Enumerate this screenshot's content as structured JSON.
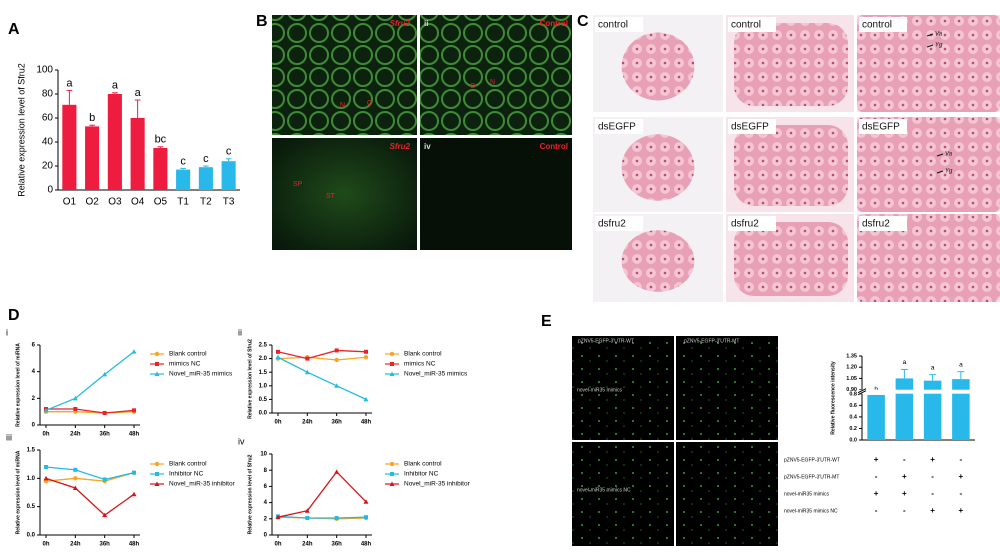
{
  "panel_labels": [
    "A",
    "B",
    "C",
    "D",
    "E"
  ],
  "chart_data": [
    {
      "type": "bar",
      "y_label": "Relative expression level of Sfru2",
      "categories": [
        "O1",
        "O2",
        "O3",
        "O4",
        "O5",
        "T1",
        "T2",
        "T3"
      ],
      "values": [
        71,
        53,
        80,
        60,
        35,
        17,
        19,
        24
      ],
      "errors": [
        12,
        1,
        1,
        15,
        1,
        1,
        1,
        2
      ],
      "letters": [
        "a",
        "b",
        "a",
        "a",
        "bc",
        "c",
        "c",
        "c"
      ],
      "colors": [
        "#ee1d3f",
        "#ee1d3f",
        "#ee1d3f",
        "#ee1d3f",
        "#ee1d3f",
        "#28b8ea",
        "#28b8ea",
        "#28b8ea"
      ],
      "ylim": [
        0,
        100
      ],
      "yticks": [
        0,
        20,
        40,
        60,
        80,
        100
      ]
    },
    {
      "type": "line",
      "label": "i",
      "y_label": "Relative expression level of miRNA",
      "categories": [
        "0h",
        "24h",
        "36h",
        "48h"
      ],
      "ylim": [
        0,
        6
      ],
      "yticks": [
        0,
        2,
        4,
        6
      ],
      "series": [
        {
          "name": "Blank control",
          "color": "#f5a623",
          "marker": "circle",
          "values": [
            1.0,
            1.0,
            0.9,
            1.0
          ]
        },
        {
          "name": "mimics NC",
          "color": "#e8232a",
          "marker": "square",
          "values": [
            1.2,
            1.2,
            0.9,
            1.1
          ]
        },
        {
          "name": "Novel_miR-35 mimics",
          "color": "#21bde0",
          "marker": "triangle",
          "values": [
            1.1,
            2.0,
            3.8,
            5.5
          ]
        }
      ]
    },
    {
      "type": "line",
      "label": "ii",
      "y_label": "Relative expression level of Sfru2",
      "categories": [
        "0h",
        "24h",
        "36h",
        "48h"
      ],
      "ylim": [
        0,
        2.5
      ],
      "yticks": [
        {
          "value": 0,
          "label": "0.0"
        },
        0.5,
        {
          "value": 1,
          "label": "1.0"
        },
        1.5,
        {
          "value": 2,
          "label": "2.0"
        },
        2.5
      ],
      "series": [
        {
          "name": "Blank control",
          "color": "#f5a623",
          "marker": "circle",
          "values": [
            2.0,
            2.05,
            1.95,
            2.05
          ]
        },
        {
          "name": "mimics NC",
          "color": "#e8232a",
          "marker": "square",
          "values": [
            2.25,
            2.0,
            2.3,
            2.25
          ]
        },
        {
          "name": "Novel_miR-35 mimics",
          "color": "#21bde0",
          "marker": "triangle",
          "values": [
            2.05,
            1.5,
            1.0,
            0.5
          ]
        }
      ]
    },
    {
      "type": "line",
      "label": "iii",
      "y_label": "Relative expression level of miRNA",
      "categories": [
        "0h",
        "24h",
        "36h",
        "48h"
      ],
      "ylim": [
        0,
        1.5
      ],
      "yticks": [
        {
          "value": 0,
          "label": "0.0"
        },
        0.5,
        {
          "value": 1,
          "label": "1.0"
        },
        1.5
      ],
      "series": [
        {
          "name": "Blank control",
          "color": "#f5a623",
          "marker": "circle",
          "values": [
            0.95,
            1.0,
            0.95,
            1.1
          ]
        },
        {
          "name": "Inhibitor NC",
          "color": "#21bde0",
          "marker": "square",
          "values": [
            1.2,
            1.15,
            0.98,
            1.1
          ]
        },
        {
          "name": "Novel_miR-35 inhibitor",
          "color": "#d7141a",
          "marker": "triangle",
          "values": [
            1.0,
            0.83,
            0.35,
            0.72
          ]
        }
      ]
    },
    {
      "type": "line",
      "label": "iv",
      "y_label": "Relative expression level of Sfru2",
      "categories": [
        "0h",
        "24h",
        "36h",
        "48h"
      ],
      "ylim": [
        0,
        10
      ],
      "yticks": [
        0,
        2,
        4,
        6,
        8,
        10
      ],
      "series": [
        {
          "name": "Blank control",
          "color": "#f5a623",
          "marker": "circle",
          "values": [
            2.2,
            2.1,
            2.0,
            2.1
          ]
        },
        {
          "name": "Inhibitor NC",
          "color": "#21bde0",
          "marker": "square",
          "values": [
            2.3,
            2.1,
            2.1,
            2.2
          ]
        },
        {
          "name": "Novel_miR-35 inhibitor",
          "color": "#d7141a",
          "marker": "triangle",
          "values": [
            2.2,
            3.0,
            7.8,
            4.1
          ]
        }
      ]
    },
    {
      "type": "bar",
      "y_label": "Relative fluorescence intensity",
      "values": [
        0.78,
        1.05,
        1.02,
        1.04
      ],
      "errors": [
        0.03,
        0.12,
        0.08,
        0.1
      ],
      "letters": [
        "b",
        "a",
        "a",
        "a"
      ],
      "colors": [
        "#28b8ea",
        "#28b8ea",
        "#28b8ea",
        "#28b8ea"
      ],
      "ylim": [
        0,
        1.35
      ],
      "ybreak": [
        0.8,
        0.9
      ],
      "yticks": [
        {
          "value": 0,
          "label": "0.0"
        },
        0.2,
        0.4,
        0.6,
        0.8,
        {
          "value": 0.9,
          "label": "0.90"
        },
        1.05,
        {
          "value": 1.2,
          "label": "1.20"
        },
        1.35
      ],
      "table": [
        {
          "name": "pZNV5-EGFP-3'UTR-WT",
          "signs": [
            "+",
            "-",
            "+",
            "-"
          ]
        },
        {
          "name": "pZNV5-EGFP-3'UTR-MT",
          "signs": [
            "-",
            "+",
            "-",
            "+"
          ]
        },
        {
          "name": "novel-miR35 mimics",
          "signs": [
            "+",
            "+",
            "-",
            "-"
          ]
        },
        {
          "name": "novel-miR35 mimics NC",
          "signs": [
            "-",
            "-",
            "+",
            "+"
          ]
        }
      ]
    }
  ],
  "panel_b": {
    "labels": [
      "Sfru2",
      "ii",
      "Control",
      "iv",
      "Control",
      "Sfru2"
    ],
    "annotations": [
      "N",
      "O",
      "O",
      "N",
      "SP",
      "ST"
    ]
  },
  "panel_c": {
    "rows": [
      "control",
      "dsEGFP",
      "dsfru2"
    ],
    "arrows": [
      "Va",
      "Yg",
      "Va",
      "Yg"
    ]
  },
  "panel_e": {
    "columns": [
      "pZNV5-EGFP-3'UTR-WT",
      "pZNV5-EGFP-3'UTR-MT"
    ],
    "rows": [
      "novel-miR35 mimics",
      "novel-miR35 mimics NC"
    ]
  }
}
